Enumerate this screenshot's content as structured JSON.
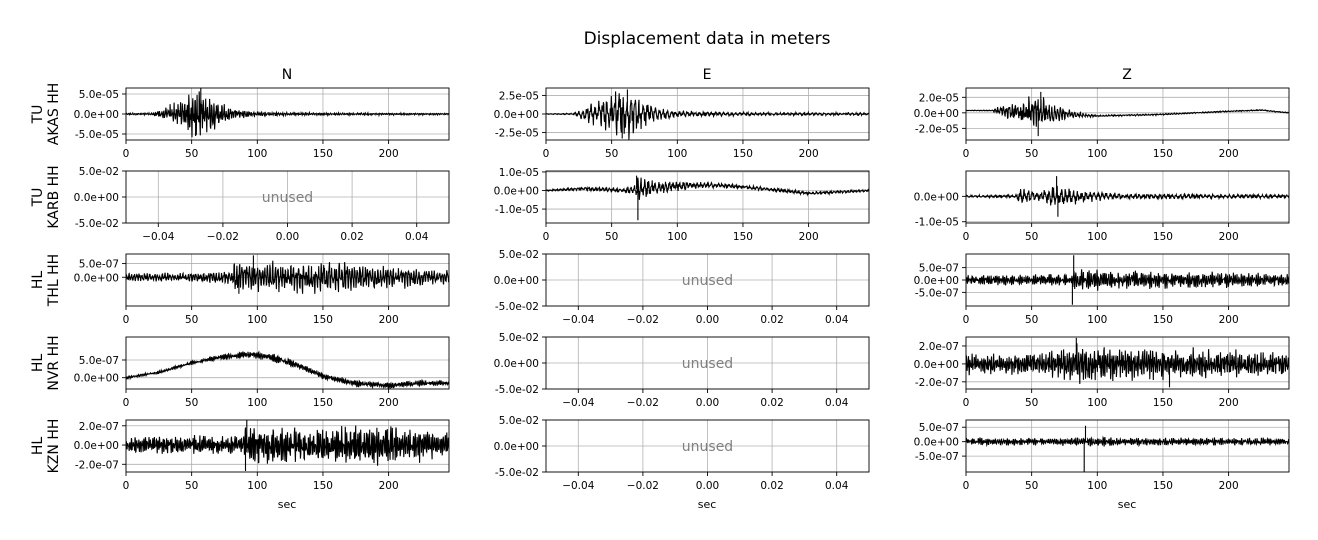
{
  "figure": {
    "title": "Displacement data in meters",
    "columns": [
      "N",
      "E",
      "Z"
    ],
    "row_labels": [
      [
        "TU",
        "AKAS HH"
      ],
      [
        "TU",
        "KARB HH"
      ],
      [
        "HL",
        "THL HH"
      ],
      [
        "HL",
        "NVR HH"
      ],
      [
        "HL",
        "KZN HH"
      ]
    ],
    "xlabel": "sec",
    "unused_label": "unused",
    "colors": {
      "trace": "#000000",
      "grid": "#b0b0b0",
      "unused_text": "#808080"
    }
  },
  "chart_data": [
    {
      "type": "line",
      "row": 0,
      "col": 0,
      "station": "TU AKAS HH",
      "component": "N",
      "used": true,
      "xlim": [
        0,
        246
      ],
      "ylim": [
        -6.5e-05,
        6.5e-05
      ],
      "xticks": [
        0,
        50,
        100,
        150,
        200
      ],
      "xtick_labels": [
        "0",
        "50",
        "100",
        "150",
        "200"
      ],
      "yticks": [
        5e-05,
        0,
        -5e-05
      ],
      "ytick_labels": [
        "5.0e-05",
        "0.0e+00",
        "-5.0e-05"
      ],
      "envelope": [
        [
          0,
          2e-06
        ],
        [
          20,
          2.5e-06
        ],
        [
          30,
          1.5e-05
        ],
        [
          42,
          3.2e-05
        ],
        [
          50,
          5e-05
        ],
        [
          55,
          6.2e-05
        ],
        [
          60,
          4.2e-05
        ],
        [
          70,
          3e-05
        ],
        [
          85,
          1.2e-05
        ],
        [
          100,
          5e-06
        ],
        [
          150,
          3e-06
        ],
        [
          246,
          2e-06
        ]
      ],
      "drift": [
        [
          0,
          0
        ],
        [
          246,
          0
        ]
      ],
      "spikes": [
        [
          53,
          -5.5e-05
        ],
        [
          57,
          6.5e-05
        ]
      ]
    },
    {
      "type": "line",
      "row": 0,
      "col": 1,
      "station": "TU AKAS HH",
      "component": "E",
      "used": true,
      "xlim": [
        0,
        246
      ],
      "ylim": [
        -3.5e-05,
        3.5e-05
      ],
      "xticks": [
        0,
        50,
        100,
        150,
        200
      ],
      "xtick_labels": [
        "0",
        "50",
        "100",
        "150",
        "200"
      ],
      "yticks": [
        2.5e-05,
        0,
        -2.5e-05
      ],
      "ytick_labels": [
        "2.5e-05",
        "0.0e+00",
        "-2.5e-05"
      ],
      "envelope": [
        [
          0,
          5e-07
        ],
        [
          20,
          1e-06
        ],
        [
          30,
          8e-06
        ],
        [
          45,
          2e-05
        ],
        [
          55,
          3e-05
        ],
        [
          60,
          3.2e-05
        ],
        [
          70,
          2e-05
        ],
        [
          85,
          8e-06
        ],
        [
          100,
          4e-06
        ],
        [
          150,
          2e-06
        ],
        [
          246,
          1.5e-06
        ]
      ],
      "drift": [
        [
          0,
          0
        ],
        [
          246,
          0
        ]
      ],
      "spikes": [
        [
          58,
          -3.3e-05
        ],
        [
          62,
          3.3e-05
        ]
      ]
    },
    {
      "type": "line",
      "row": 0,
      "col": 2,
      "station": "TU AKAS HH",
      "component": "Z",
      "used": true,
      "xlim": [
        0,
        246
      ],
      "ylim": [
        -3.5e-05,
        3.2e-05
      ],
      "xticks": [
        0,
        50,
        100,
        150,
        200
      ],
      "xtick_labels": [
        "0",
        "50",
        "100",
        "150",
        "200"
      ],
      "yticks": [
        2e-05,
        0,
        -2e-05
      ],
      "ytick_labels": [
        "2.0e-05",
        "0.0e+00",
        "-2.0e-05"
      ],
      "envelope": [
        [
          0,
          3e-07
        ],
        [
          20,
          5e-07
        ],
        [
          25,
          6e-06
        ],
        [
          40,
          1.2e-05
        ],
        [
          52,
          2.5e-05
        ],
        [
          58,
          1.8e-05
        ],
        [
          70,
          1e-05
        ],
        [
          85,
          3e-06
        ],
        [
          100,
          1e-06
        ],
        [
          246,
          6e-07
        ]
      ],
      "drift": [
        [
          0,
          3e-06
        ],
        [
          20,
          3e-06
        ],
        [
          60,
          0
        ],
        [
          100,
          -4e-06
        ],
        [
          150,
          -2e-06
        ],
        [
          200,
          2e-06
        ],
        [
          225,
          3.5e-06
        ],
        [
          246,
          0
        ]
      ],
      "spikes": [
        [
          55,
          -3e-05
        ],
        [
          57,
          2.7e-05
        ]
      ]
    },
    {
      "type": "line",
      "row": 1,
      "col": 0,
      "station": "TU KARB HH",
      "component": "N",
      "used": false,
      "xlim": [
        -0.05,
        0.05
      ],
      "ylim": [
        -0.05,
        0.05
      ],
      "xticks": [
        -0.04,
        -0.02,
        0,
        0.02,
        0.04
      ],
      "xtick_labels": [
        "−0.04",
        "−0.02",
        "0.00",
        "0.02",
        "0.04"
      ],
      "yticks": [
        0.05,
        0,
        -0.05
      ],
      "ytick_labels": [
        "5.0e-02",
        "0.0e+00",
        "-5.0e-02"
      ]
    },
    {
      "type": "line",
      "row": 1,
      "col": 1,
      "station": "TU KARB HH",
      "component": "E",
      "used": true,
      "xlim": [
        0,
        246
      ],
      "ylim": [
        -1.75e-05,
        1.05e-05
      ],
      "xticks": [
        0,
        50,
        100,
        150,
        200
      ],
      "xtick_labels": [
        "0",
        "50",
        "100",
        "150",
        "200"
      ],
      "yticks": [
        1e-05,
        0,
        -1e-05
      ],
      "ytick_labels": [
        "1.0e-05",
        "0.0e+00",
        "-1.0e-05"
      ],
      "envelope": [
        [
          0,
          4e-07
        ],
        [
          20,
          6e-07
        ],
        [
          50,
          1.2e-06
        ],
        [
          68,
          2e-06
        ],
        [
          70,
          7e-06
        ],
        [
          78,
          4e-06
        ],
        [
          100,
          2e-06
        ],
        [
          150,
          1e-06
        ],
        [
          246,
          6e-07
        ]
      ],
      "drift": [
        [
          0,
          0
        ],
        [
          30,
          1e-06
        ],
        [
          60,
          0
        ],
        [
          80,
          1.5e-06
        ],
        [
          120,
          3e-06
        ],
        [
          150,
          2e-06
        ],
        [
          180,
          0
        ],
        [
          200,
          -1.5e-06
        ],
        [
          246,
          0
        ]
      ],
      "spikes": [
        [
          70,
          -1.6e-05
        ],
        [
          69,
          8e-06
        ]
      ]
    },
    {
      "type": "line",
      "row": 1,
      "col": 2,
      "station": "TU KARB HH",
      "component": "Z",
      "used": true,
      "xlim": [
        0,
        246
      ],
      "ylim": [
        -1.05e-05,
        1e-05
      ],
      "xticks": [
        0,
        50,
        100,
        150,
        200
      ],
      "xtick_labels": [
        "0",
        "50",
        "100",
        "150",
        "200"
      ],
      "yticks": [
        0,
        -1e-05
      ],
      "ytick_labels": [
        "0.0e+00",
        "-1.0e-05"
      ],
      "envelope": [
        [
          0,
          4e-07
        ],
        [
          38,
          6e-07
        ],
        [
          40,
          3.5e-06
        ],
        [
          55,
          1.5e-06
        ],
        [
          70,
          4e-06
        ],
        [
          90,
          2e-06
        ],
        [
          120,
          1e-06
        ],
        [
          246,
          6e-07
        ]
      ],
      "drift": [
        [
          0,
          0
        ],
        [
          246,
          0
        ]
      ],
      "spikes": [
        [
          69,
          8e-06
        ],
        [
          70,
          -8e-06
        ]
      ]
    },
    {
      "type": "line",
      "row": 2,
      "col": 0,
      "station": "HL THL HH",
      "component": "N",
      "used": true,
      "xlim": [
        0,
        246
      ],
      "ylim": [
        -1.05e-06,
        8.5e-07
      ],
      "xticks": [
        0,
        50,
        100,
        150,
        200
      ],
      "xtick_labels": [
        "0",
        "50",
        "100",
        "150",
        "200"
      ],
      "yticks": [
        5e-07,
        0
      ],
      "ytick_labels": [
        "5.0e-07",
        "0.0e+00"
      ],
      "envelope": [
        [
          0,
          1.2e-07
        ],
        [
          40,
          1.5e-07
        ],
        [
          80,
          2e-07
        ],
        [
          83,
          5.5e-07
        ],
        [
          100,
          4.5e-07
        ],
        [
          150,
          6e-07
        ],
        [
          190,
          4e-07
        ],
        [
          246,
          2.5e-07
        ]
      ],
      "drift": [
        [
          0,
          0
        ],
        [
          246,
          0
        ]
      ],
      "spikes": [
        [
          97,
          8e-07
        ],
        [
          86,
          -6e-07
        ]
      ]
    },
    {
      "type": "line",
      "row": 2,
      "col": 1,
      "station": "HL THL HH",
      "component": "E",
      "used": false,
      "xlim": [
        -0.05,
        0.05
      ],
      "ylim": [
        -0.05,
        0.05
      ],
      "xticks": [
        -0.04,
        -0.02,
        0,
        0.02,
        0.04
      ],
      "xtick_labels": [
        "−0.04",
        "−0.02",
        "0.00",
        "0.02",
        "0.04"
      ],
      "yticks": [
        0.05,
        0,
        -0.05
      ],
      "ytick_labels": [
        "5.0e-02",
        "0.0e+00",
        "-5.0e-02"
      ]
    },
    {
      "type": "line",
      "row": 2,
      "col": 2,
      "station": "HL THL HH",
      "component": "Z",
      "used": true,
      "xlim": [
        0,
        246
      ],
      "ylim": [
        -1.05e-06,
        1.05e-06
      ],
      "xticks": [
        0,
        50,
        100,
        150,
        200
      ],
      "xtick_labels": [
        "0",
        "50",
        "100",
        "150",
        "200"
      ],
      "yticks": [
        5e-07,
        0,
        -5e-07
      ],
      "ytick_labels": [
        "5.0e-07",
        "0.0e+00",
        "-5.0e-07"
      ],
      "envelope": [
        [
          0,
          1.8e-07
        ],
        [
          80,
          2.2e-07
        ],
        [
          83,
          4e-07
        ],
        [
          120,
          3.2e-07
        ],
        [
          246,
          2.2e-07
        ]
      ],
      "drift": [
        [
          0,
          0
        ],
        [
          246,
          0
        ]
      ],
      "spikes": [
        [
          82,
          1e-06
        ],
        [
          81,
          -1e-06
        ]
      ]
    },
    {
      "type": "line",
      "row": 3,
      "col": 0,
      "station": "HL NVR HH",
      "component": "N",
      "used": true,
      "xlim": [
        0,
        246
      ],
      "ylim": [
        -3.2e-07,
        1.15e-06
      ],
      "xticks": [
        0,
        50,
        100,
        150,
        200
      ],
      "xtick_labels": [
        "0",
        "50",
        "100",
        "150",
        "200"
      ],
      "yticks": [
        5e-07,
        0
      ],
      "ytick_labels": [
        "5.0e-07",
        "0.0e+00"
      ],
      "envelope": [
        [
          0,
          3e-08
        ],
        [
          60,
          5e-08
        ],
        [
          85,
          9e-08
        ],
        [
          120,
          1e-07
        ],
        [
          160,
          8e-08
        ],
        [
          246,
          7e-08
        ]
      ],
      "drift": [
        [
          0,
          0
        ],
        [
          25,
          1.5e-07
        ],
        [
          50,
          4.2e-07
        ],
        [
          75,
          6e-07
        ],
        [
          95,
          6.6e-07
        ],
        [
          110,
          5.8e-07
        ],
        [
          130,
          3.6e-07
        ],
        [
          150,
          5e-08
        ],
        [
          175,
          -1.7e-07
        ],
        [
          200,
          -2.2e-07
        ],
        [
          225,
          -1.5e-07
        ],
        [
          246,
          -1.6e-07
        ]
      ],
      "spikes": []
    },
    {
      "type": "line",
      "row": 3,
      "col": 1,
      "station": "HL NVR HH",
      "component": "E",
      "used": false,
      "xlim": [
        -0.05,
        0.05
      ],
      "ylim": [
        -0.05,
        0.05
      ],
      "xticks": [
        -0.04,
        -0.02,
        0,
        0.02,
        0.04
      ],
      "xtick_labels": [
        "−0.04",
        "−0.02",
        "0.00",
        "0.02",
        "0.04"
      ],
      "yticks": [
        0.05,
        0,
        -0.05
      ],
      "ytick_labels": [
        "5.0e-02",
        "0.0e+00",
        "-5.0e-02"
      ]
    },
    {
      "type": "line",
      "row": 3,
      "col": 2,
      "station": "HL NVR HH",
      "component": "Z",
      "used": true,
      "xlim": [
        0,
        246
      ],
      "ylim": [
        -2.8e-07,
        3e-07
      ],
      "xticks": [
        0,
        50,
        100,
        150,
        200
      ],
      "xtick_labels": [
        "0",
        "50",
        "100",
        "150",
        "200"
      ],
      "yticks": [
        2e-07,
        0,
        -2e-07
      ],
      "ytick_labels": [
        "2.0e-07",
        "0.0e+00",
        "-2.0e-07"
      ],
      "envelope": [
        [
          0,
          1e-07
        ],
        [
          60,
          1.1e-07
        ],
        [
          84,
          1.9e-07
        ],
        [
          120,
          1.7e-07
        ],
        [
          160,
          1.5e-07
        ],
        [
          246,
          1.1e-07
        ]
      ],
      "drift": [
        [
          0,
          0
        ],
        [
          246,
          0
        ]
      ],
      "spikes": [
        [
          84,
          2.9e-07
        ],
        [
          155,
          -2.6e-07
        ]
      ]
    },
    {
      "type": "line",
      "row": 4,
      "col": 0,
      "station": "HL KZN HH",
      "component": "N",
      "used": true,
      "xlim": [
        0,
        246
      ],
      "ylim": [
        -2.8e-07,
        2.6e-07
      ],
      "xticks": [
        0,
        50,
        100,
        150,
        200
      ],
      "xtick_labels": [
        "0",
        "50",
        "100",
        "150",
        "200"
      ],
      "yticks": [
        2e-07,
        0,
        -2e-07
      ],
      "ytick_labels": [
        "2.0e-07",
        "0.0e+00",
        "-2.0e-07"
      ],
      "envelope": [
        [
          0,
          8e-08
        ],
        [
          88,
          9e-08
        ],
        [
          91,
          1.9e-07
        ],
        [
          130,
          1.6e-07
        ],
        [
          200,
          1.9e-07
        ],
        [
          246,
          1.2e-07
        ]
      ],
      "drift": [
        [
          0,
          0
        ],
        [
          246,
          0
        ]
      ],
      "spikes": [
        [
          92,
          2.6e-07
        ],
        [
          91,
          -2.7e-07
        ]
      ]
    },
    {
      "type": "line",
      "row": 4,
      "col": 1,
      "station": "HL KZN HH",
      "component": "E",
      "used": false,
      "xlim": [
        -0.05,
        0.05
      ],
      "ylim": [
        -0.05,
        0.05
      ],
      "xticks": [
        -0.04,
        -0.02,
        0,
        0.02,
        0.04
      ],
      "xtick_labels": [
        "−0.04",
        "−0.02",
        "0.00",
        "0.02",
        "0.04"
      ],
      "yticks": [
        0.05,
        0,
        -0.05
      ],
      "ytick_labels": [
        "5.0e-02",
        "0.0e+00",
        "-5.0e-02"
      ]
    },
    {
      "type": "line",
      "row": 4,
      "col": 2,
      "station": "HL KZN HH",
      "component": "Z",
      "used": true,
      "xlim": [
        0,
        246
      ],
      "ylim": [
        -1.05e-06,
        7.5e-07
      ],
      "xticks": [
        0,
        50,
        100,
        150,
        200
      ],
      "xtick_labels": [
        "0",
        "50",
        "100",
        "150",
        "200"
      ],
      "yticks": [
        5e-07,
        0,
        -5e-07
      ],
      "ytick_labels": [
        "5.0e-07",
        "0.0e+00",
        "-5.0e-07"
      ],
      "envelope": [
        [
          0,
          1.2e-07
        ],
        [
          60,
          1e-07
        ],
        [
          90,
          1.5e-07
        ],
        [
          120,
          1.2e-07
        ],
        [
          246,
          1.1e-07
        ]
      ],
      "drift": [
        [
          0,
          0
        ],
        [
          246,
          0
        ]
      ],
      "spikes": [
        [
          90,
          -1.05e-06
        ],
        [
          91,
          5.5e-07
        ]
      ]
    }
  ]
}
